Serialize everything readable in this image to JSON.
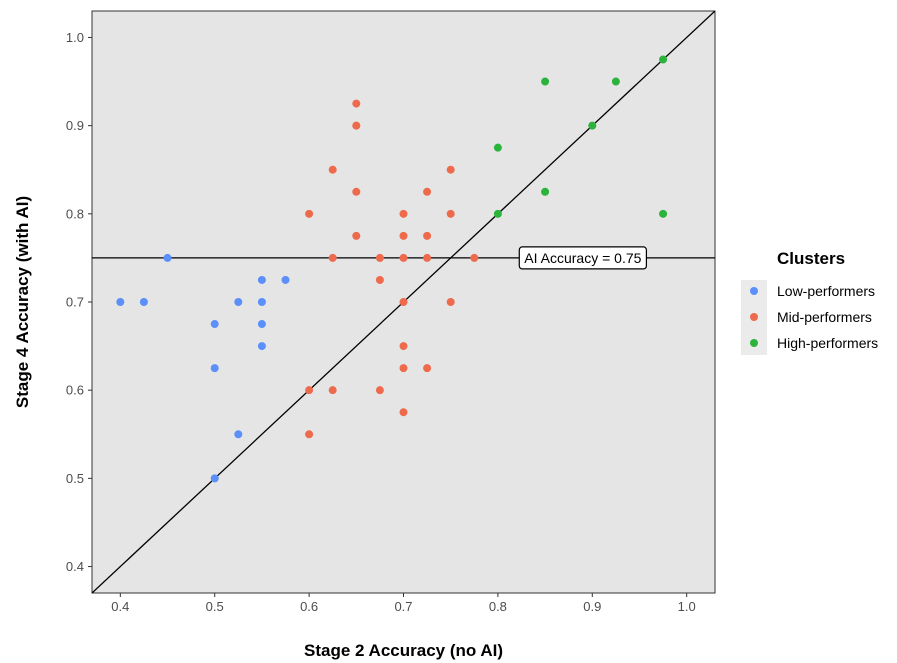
{
  "chart_data": {
    "type": "scatter",
    "xlabel": "Stage 2 Accuracy (no AI)",
    "ylabel": "Stage 4 Accuracy (with AI)",
    "xlim": [
      0.37,
      1.03
    ],
    "ylim": [
      0.37,
      1.03
    ],
    "x_ticks": [
      "0.4",
      "0.5",
      "0.6",
      "0.7",
      "0.8",
      "0.9",
      "1.0"
    ],
    "y_ticks": [
      "0.4",
      "0.5",
      "0.6",
      "0.7",
      "0.8",
      "0.9",
      "1.0"
    ],
    "grid": false,
    "background": "#e5e5e5",
    "reference_lines": {
      "diagonal": "y = x",
      "horizontal_y": 0.75,
      "horizontal_label": "AI Accuracy = 0.75",
      "horizontal_label_x": 0.89
    },
    "legend": {
      "title": "Clusters",
      "placement": "right"
    },
    "series": [
      {
        "name": "Low-performers",
        "color": "#5b8ff9",
        "points": [
          [
            0.4,
            0.7
          ],
          [
            0.425,
            0.7
          ],
          [
            0.45,
            0.75
          ],
          [
            0.5,
            0.675
          ],
          [
            0.5,
            0.625
          ],
          [
            0.5,
            0.5
          ],
          [
            0.525,
            0.7
          ],
          [
            0.525,
            0.55
          ],
          [
            0.55,
            0.725
          ],
          [
            0.55,
            0.7
          ],
          [
            0.55,
            0.675
          ],
          [
            0.55,
            0.65
          ],
          [
            0.575,
            0.725
          ]
        ]
      },
      {
        "name": "Mid-performers",
        "color": "#ee6a4d",
        "points": [
          [
            0.6,
            0.8
          ],
          [
            0.6,
            0.6
          ],
          [
            0.6,
            0.55
          ],
          [
            0.625,
            0.85
          ],
          [
            0.625,
            0.75
          ],
          [
            0.625,
            0.6
          ],
          [
            0.65,
            0.925
          ],
          [
            0.65,
            0.9
          ],
          [
            0.65,
            0.825
          ],
          [
            0.65,
            0.775
          ],
          [
            0.675,
            0.75
          ],
          [
            0.675,
            0.725
          ],
          [
            0.675,
            0.6
          ],
          [
            0.7,
            0.8
          ],
          [
            0.7,
            0.775
          ],
          [
            0.7,
            0.75
          ],
          [
            0.7,
            0.7
          ],
          [
            0.7,
            0.65
          ],
          [
            0.7,
            0.625
          ],
          [
            0.7,
            0.575
          ],
          [
            0.725,
            0.825
          ],
          [
            0.725,
            0.775
          ],
          [
            0.725,
            0.75
          ],
          [
            0.725,
            0.625
          ],
          [
            0.75,
            0.85
          ],
          [
            0.75,
            0.8
          ],
          [
            0.75,
            0.7
          ],
          [
            0.775,
            0.75
          ]
        ]
      },
      {
        "name": "High-performers",
        "color": "#2bb33c",
        "points": [
          [
            0.8,
            0.875
          ],
          [
            0.8,
            0.8
          ],
          [
            0.85,
            0.95
          ],
          [
            0.85,
            0.825
          ],
          [
            0.9,
            0.9
          ],
          [
            0.925,
            0.95
          ],
          [
            0.975,
            0.975
          ],
          [
            0.975,
            0.8
          ]
        ]
      }
    ]
  }
}
